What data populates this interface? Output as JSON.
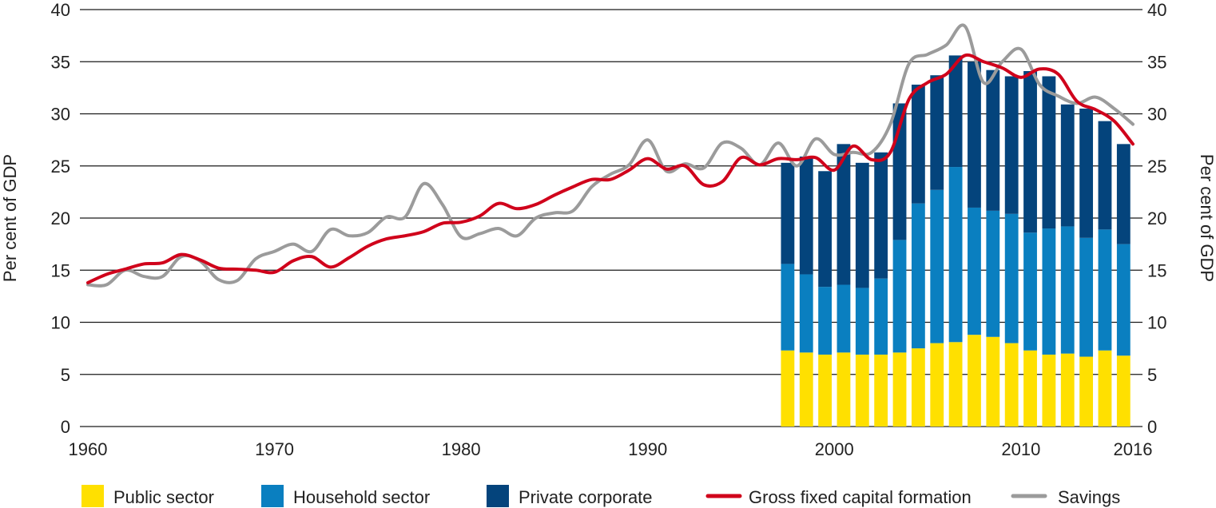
{
  "chart_data": {
    "type": "bar+line",
    "title": "",
    "ylabel_left": "Per cent of GDP",
    "ylabel_right": "Per cent of GDP",
    "xlim": [
      1960,
      2016
    ],
    "ylim": [
      0,
      40
    ],
    "y_ticks": [
      0,
      5,
      10,
      15,
      20,
      25,
      30,
      35,
      40
    ],
    "x_ticks": [
      1960,
      1970,
      1980,
      1990,
      2000,
      2010,
      2016
    ],
    "grid": true,
    "legend_position": "bottom",
    "colors": {
      "public": "#ffe000",
      "household": "#0a7fc0",
      "corporate": "#04447c",
      "gfcf": "#d0021b",
      "savings": "#9b9b9b",
      "grid": "#1a1a1a",
      "text": "#222222"
    },
    "bar_years": [
      1998,
      1999,
      2000,
      2001,
      2002,
      2003,
      2004,
      2005,
      2006,
      2007,
      2008,
      2009,
      2010,
      2011,
      2012,
      2013,
      2014,
      2015,
      2016
    ],
    "bar_series": [
      {
        "name": "Public sector",
        "key": "public",
        "values": [
          7.3,
          7.1,
          6.9,
          7.1,
          6.9,
          6.9,
          7.1,
          7.5,
          8.0,
          8.1,
          8.8,
          8.6,
          8.0,
          7.3,
          6.9,
          7.0,
          6.7,
          7.3,
          6.8
        ]
      },
      {
        "name": "Household sector",
        "key": "household",
        "values": [
          8.3,
          7.5,
          6.5,
          6.5,
          6.4,
          7.3,
          10.8,
          13.9,
          14.7,
          16.8,
          12.2,
          12.1,
          12.4,
          11.3,
          12.1,
          12.2,
          11.4,
          11.6,
          10.7
        ]
      },
      {
        "name": "Private corporate",
        "key": "corporate",
        "values": [
          9.7,
          11.3,
          11.1,
          13.5,
          12.0,
          12.1,
          13.1,
          11.4,
          11.0,
          10.7,
          14.0,
          13.5,
          13.2,
          15.5,
          14.6,
          11.7,
          12.4,
          10.4,
          9.6
        ]
      }
    ],
    "line_series": [
      {
        "name": "Gross fixed capital formation",
        "key": "gfcf",
        "x": [
          1960,
          1961,
          1962,
          1963,
          1964,
          1965,
          1966,
          1967,
          1968,
          1969,
          1970,
          1971,
          1972,
          1973,
          1974,
          1975,
          1976,
          1977,
          1978,
          1979,
          1980,
          1981,
          1982,
          1983,
          1984,
          1985,
          1986,
          1987,
          1988,
          1989,
          1990,
          1991,
          1992,
          1993,
          1994,
          1995,
          1996,
          1997,
          1998,
          1999,
          2000,
          2001,
          2002,
          2003,
          2004,
          2005,
          2006,
          2007,
          2008,
          2009,
          2010,
          2011,
          2012,
          2013,
          2014,
          2015,
          2016
        ],
        "values": [
          13.8,
          14.6,
          15.1,
          15.6,
          15.7,
          16.5,
          16.0,
          15.2,
          15.1,
          15.0,
          14.8,
          15.9,
          16.3,
          15.3,
          16.2,
          17.3,
          18.0,
          18.3,
          18.7,
          19.5,
          19.6,
          20.2,
          21.4,
          20.9,
          21.3,
          22.2,
          23.0,
          23.7,
          23.7,
          24.6,
          25.7,
          24.7,
          25.0,
          23.2,
          23.5,
          25.8,
          25.1,
          25.7,
          25.6,
          25.8,
          24.6,
          26.9,
          25.6,
          26.3,
          31.4,
          33.0,
          33.8,
          35.6,
          35.0,
          34.4,
          33.5,
          34.3,
          33.8,
          31.2,
          30.4,
          29.3,
          27.1
        ]
      },
      {
        "name": "Savings",
        "key": "savings",
        "x": [
          1960,
          1961,
          1962,
          1963,
          1964,
          1965,
          1966,
          1967,
          1968,
          1969,
          1970,
          1971,
          1972,
          1973,
          1974,
          1975,
          1976,
          1977,
          1978,
          1979,
          1980,
          1981,
          1982,
          1983,
          1984,
          1985,
          1986,
          1987,
          1988,
          1989,
          1990,
          1991,
          1992,
          1993,
          1994,
          1995,
          1996,
          1997,
          1998,
          1999,
          2000,
          2001,
          2002,
          2003,
          2004,
          2005,
          2006,
          2007,
          2008,
          2009,
          2010,
          2011,
          2012,
          2013,
          2014,
          2015,
          2016
        ],
        "values": [
          13.6,
          13.6,
          15.0,
          14.4,
          14.4,
          16.3,
          15.9,
          14.1,
          14.0,
          16.1,
          16.8,
          17.5,
          16.8,
          18.9,
          18.3,
          18.6,
          20.1,
          20.1,
          23.3,
          21.3,
          18.2,
          18.5,
          19.0,
          18.3,
          20.0,
          20.5,
          20.7,
          23.0,
          24.2,
          25.1,
          27.5,
          24.5,
          25.2,
          24.8,
          27.2,
          26.7,
          25.1,
          27.2,
          25.0,
          27.6,
          26.1,
          26.3,
          26.3,
          29.0,
          34.8,
          35.7,
          36.6,
          38.4,
          33.0,
          35.0,
          36.2,
          32.8,
          31.7,
          31.0,
          31.6,
          30.5,
          29.0
        ]
      }
    ],
    "legend": [
      {
        "label": "Public sector",
        "key": "public",
        "kind": "box"
      },
      {
        "label": "Household sector",
        "key": "household",
        "kind": "box"
      },
      {
        "label": "Private corporate",
        "key": "corporate",
        "kind": "box"
      },
      {
        "label": "Gross fixed capital formation",
        "key": "gfcf",
        "kind": "line"
      },
      {
        "label": "Savings",
        "key": "savings",
        "kind": "line"
      }
    ]
  }
}
